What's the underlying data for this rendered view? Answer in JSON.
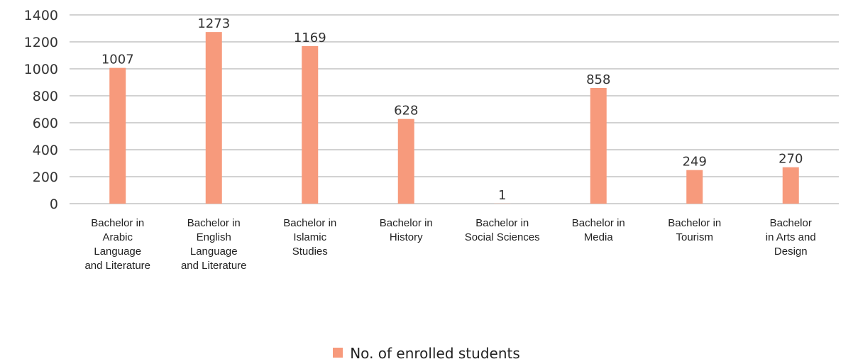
{
  "chart_data": {
    "type": "bar",
    "categories": [
      [
        "Bachelor in",
        "Arabic",
        "Language",
        "and Literature"
      ],
      [
        "Bachelor in",
        "English",
        "Language",
        "and Literature"
      ],
      [
        "Bachelor in",
        "Islamic",
        "Studies"
      ],
      [
        "Bachelor in",
        "History"
      ],
      [
        "Bachelor in",
        "Social Sciences"
      ],
      [
        "Bachelor in",
        "Media"
      ],
      [
        "Bachelor in",
        "Tourism"
      ],
      [
        "Bachelor",
        "in Arts and",
        "Design"
      ]
    ],
    "series": [
      {
        "name": "No. of enrolled students",
        "values": [
          1007,
          1273,
          1169,
          628,
          1,
          858,
          249,
          270
        ],
        "color": "#f79a7c"
      }
    ],
    "ylim": [
      0,
      1400
    ],
    "yticks": [
      0,
      200,
      400,
      600,
      800,
      1000,
      1200,
      1400
    ],
    "grid": true,
    "gridColor": "#a6a6a6",
    "legend_position": "bottom",
    "data_labels": true
  }
}
